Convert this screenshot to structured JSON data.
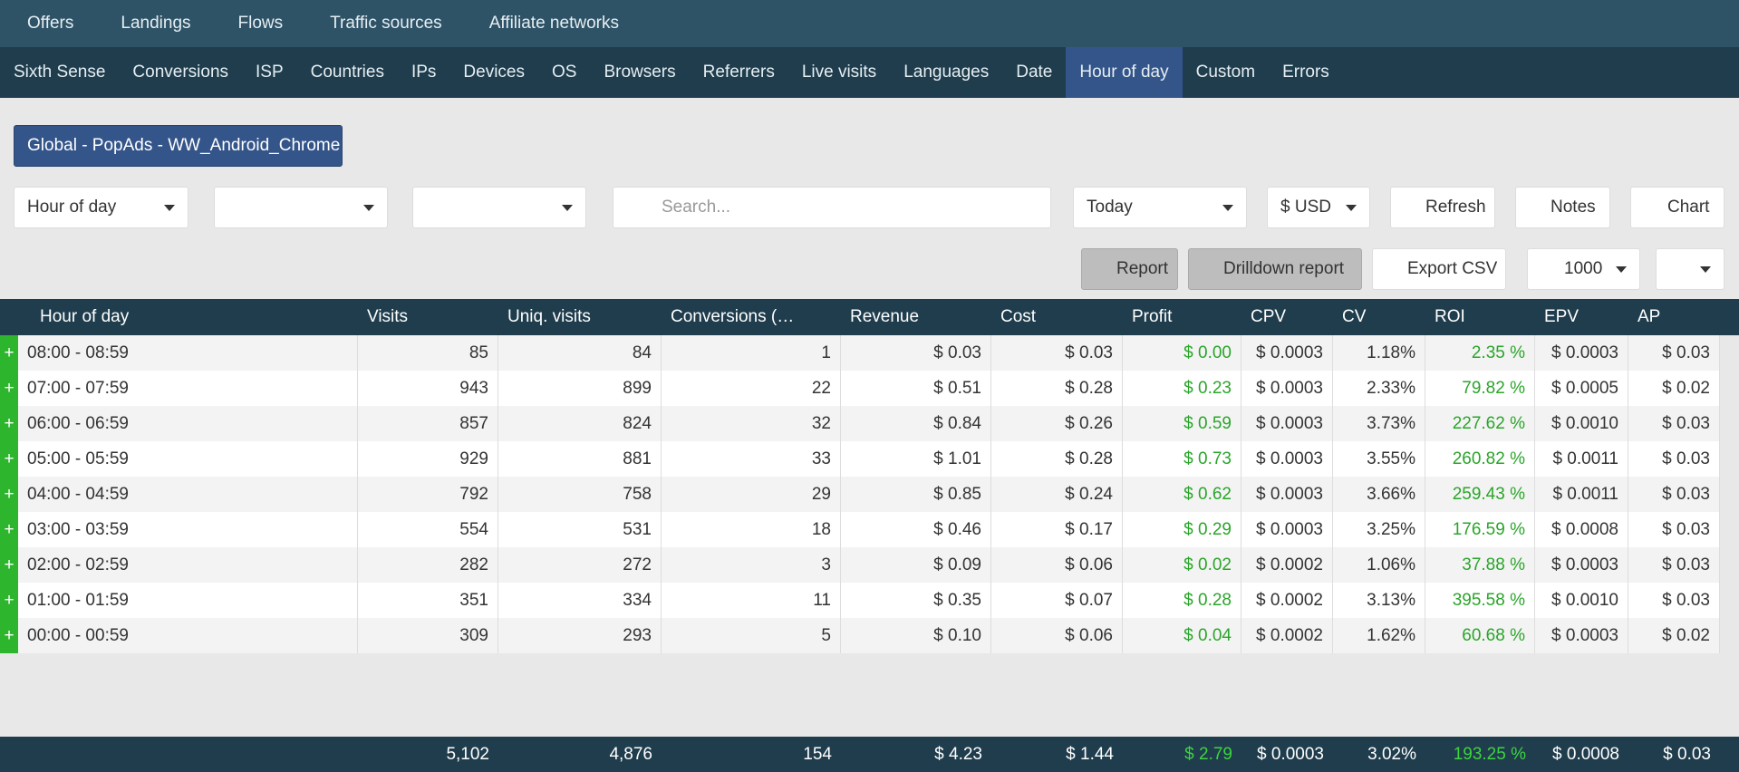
{
  "nav_top": [
    "Offers",
    "Landings",
    "Flows",
    "Traffic sources",
    "Affiliate networks"
  ],
  "nav_reports": [
    "Sixth Sense",
    "Conversions",
    "ISP",
    "Countries",
    "IPs",
    "Devices",
    "OS",
    "Browsers",
    "Referrers",
    "Live visits",
    "Languages",
    "Date",
    "Hour of day",
    "Custom",
    "Errors"
  ],
  "active_report": 12,
  "campaign": "Global - PopAds - WW_Android_Chrome",
  "controls": {
    "group": "Hour of day",
    "search": "Search...",
    "period": "Today",
    "currency": "$ USD",
    "refresh": "Refresh",
    "notes": "Notes",
    "chart": "Chart",
    "report": "Report",
    "drilldown": "Drilldown report",
    "export": "Export CSV",
    "page_size": "1000"
  },
  "table": {
    "expand": "+",
    "green_columns": [
      6,
      9
    ],
    "columns": [
      "Hour of day",
      "Visits",
      "Uniq. visits",
      "Conversions (…",
      "Revenue",
      "Cost",
      "Profit",
      "CPV",
      "CV",
      "ROI",
      "EPV",
      "AP"
    ],
    "rows": [
      [
        "08:00 - 08:59",
        "85",
        "84",
        "1",
        "$ 0.03",
        "$ 0.03",
        "$ 0.00",
        "$ 0.0003",
        "1.18%",
        "2.35 %",
        "$ 0.0003",
        "$ 0.03"
      ],
      [
        "07:00 - 07:59",
        "943",
        "899",
        "22",
        "$ 0.51",
        "$ 0.28",
        "$ 0.23",
        "$ 0.0003",
        "2.33%",
        "79.82 %",
        "$ 0.0005",
        "$ 0.02"
      ],
      [
        "06:00 - 06:59",
        "857",
        "824",
        "32",
        "$ 0.84",
        "$ 0.26",
        "$ 0.59",
        "$ 0.0003",
        "3.73%",
        "227.62 %",
        "$ 0.0010",
        "$ 0.03"
      ],
      [
        "05:00 - 05:59",
        "929",
        "881",
        "33",
        "$ 1.01",
        "$ 0.28",
        "$ 0.73",
        "$ 0.0003",
        "3.55%",
        "260.82 %",
        "$ 0.0011",
        "$ 0.03"
      ],
      [
        "04:00 - 04:59",
        "792",
        "758",
        "29",
        "$ 0.85",
        "$ 0.24",
        "$ 0.62",
        "$ 0.0003",
        "3.66%",
        "259.43 %",
        "$ 0.0011",
        "$ 0.03"
      ],
      [
        "03:00 - 03:59",
        "554",
        "531",
        "18",
        "$ 0.46",
        "$ 0.17",
        "$ 0.29",
        "$ 0.0003",
        "3.25%",
        "176.59 %",
        "$ 0.0008",
        "$ 0.03"
      ],
      [
        "02:00 - 02:59",
        "282",
        "272",
        "3",
        "$ 0.09",
        "$ 0.06",
        "$ 0.02",
        "$ 0.0002",
        "1.06%",
        "37.88 %",
        "$ 0.0003",
        "$ 0.03"
      ],
      [
        "01:00 - 01:59",
        "351",
        "334",
        "11",
        "$ 0.35",
        "$ 0.07",
        "$ 0.28",
        "$ 0.0002",
        "3.13%",
        "395.58 %",
        "$ 0.0010",
        "$ 0.03"
      ],
      [
        "00:00 - 00:59",
        "309",
        "293",
        "5",
        "$ 0.10",
        "$ 0.06",
        "$ 0.04",
        "$ 0.0002",
        "1.62%",
        "60.68 %",
        "$ 0.0003",
        "$ 0.02"
      ]
    ],
    "totals": [
      "5,102",
      "4,876",
      "154",
      "$ 4.23",
      "$ 1.44",
      "$ 2.79",
      "$ 0.0003",
      "3.02%",
      "193.25 %",
      "$ 0.0008",
      "$ 0.03"
    ]
  }
}
